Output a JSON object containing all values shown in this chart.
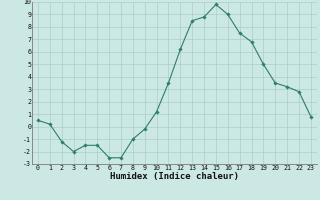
{
  "x": [
    0,
    1,
    2,
    3,
    4,
    5,
    6,
    7,
    8,
    9,
    10,
    11,
    12,
    13,
    14,
    15,
    16,
    17,
    18,
    19,
    20,
    21,
    22,
    23
  ],
  "y": [
    0.5,
    0.2,
    -1.2,
    -2.0,
    -1.5,
    -1.5,
    -2.5,
    -2.5,
    -1.0,
    -0.2,
    1.2,
    3.5,
    6.2,
    8.5,
    8.8,
    9.8,
    9.0,
    7.5,
    6.8,
    5.0,
    3.5,
    3.2,
    2.8,
    0.8
  ],
  "xlabel": "Humidex (Indice chaleur)",
  "ylim": [
    -3,
    10
  ],
  "xlim": [
    -0.5,
    23.5
  ],
  "yticks": [
    -3,
    -2,
    -1,
    0,
    1,
    2,
    3,
    4,
    5,
    6,
    7,
    8,
    9,
    10
  ],
  "xticks": [
    0,
    1,
    2,
    3,
    4,
    5,
    6,
    7,
    8,
    9,
    10,
    11,
    12,
    13,
    14,
    15,
    16,
    17,
    18,
    19,
    20,
    21,
    22,
    23
  ],
  "line_color": "#2d7d6e",
  "marker": "D",
  "marker_size": 1.8,
  "bg_color": "#cce8e4",
  "grid_color": "#aaceca",
  "figsize": [
    3.2,
    2.0
  ],
  "dpi": 100
}
